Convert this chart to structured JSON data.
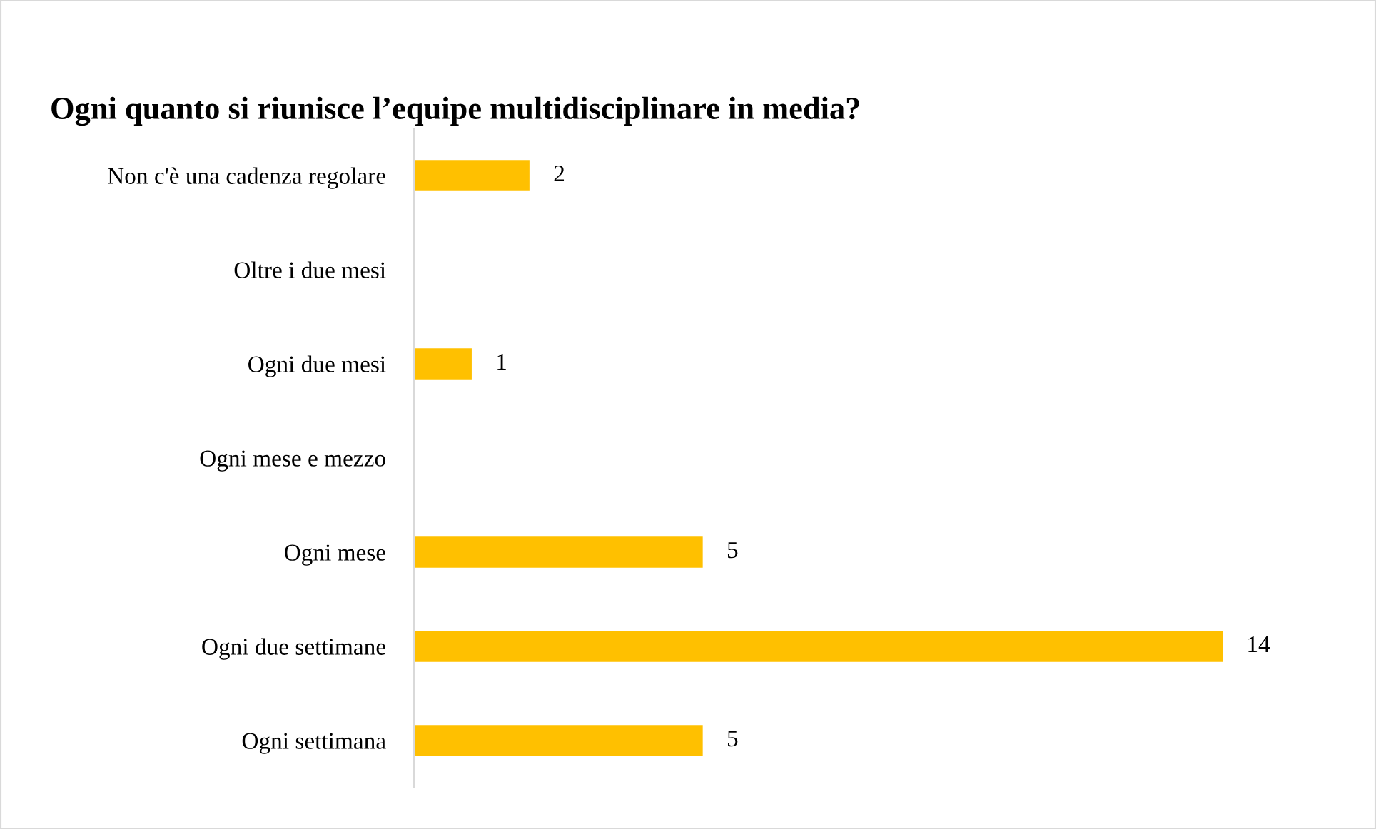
{
  "chart_data": {
    "type": "bar",
    "orientation": "horizontal",
    "title": "Ogni quanto si riunisce l’equipe multidisciplinare in media?",
    "categories": [
      "Non c'è una cadenza regolare",
      "Oltre i due mesi",
      "Ogni due mesi",
      "Ogni mese e mezzo",
      "Ogni mese",
      "Ogni due settimane",
      "Ogni settimana"
    ],
    "values": [
      2,
      0,
      1,
      0,
      5,
      14,
      5
    ],
    "value_labels": [
      "2",
      null,
      "1",
      null,
      "5",
      "14",
      "5"
    ],
    "color": "#ffc000",
    "grid": false,
    "legend": false
  }
}
